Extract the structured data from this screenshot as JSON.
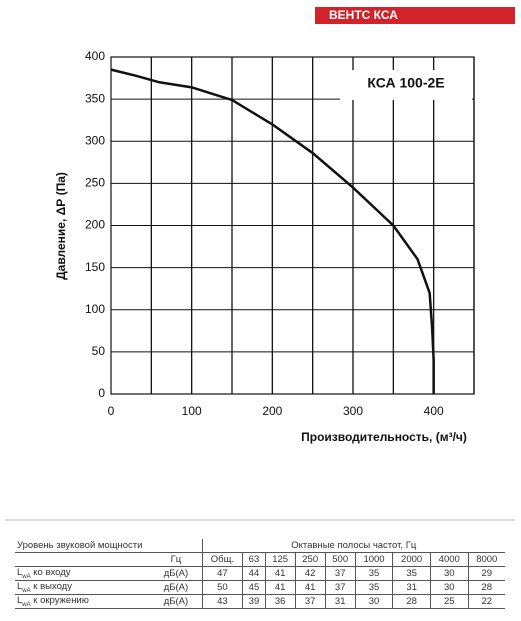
{
  "brand": "ВЕНТС КСА",
  "chart_data": {
    "type": "line",
    "annotation": "КСА 100-2E",
    "y_label": "Давление, ΔР (Па)",
    "x_label": "Производительность, (м³/ч)",
    "series": [
      {
        "name": "КСА 100-2E",
        "color": "#111111",
        "x": [
          0,
          30,
          60,
          100,
          130,
          150,
          200,
          250,
          300,
          350,
          380,
          395,
          398,
          400,
          400
        ],
        "values": [
          385,
          378,
          370,
          364,
          355,
          349,
          320,
          286,
          245,
          200,
          160,
          120,
          80,
          40,
          0
        ]
      }
    ],
    "xlim": [
      0,
      450
    ],
    "xticks": [
      0,
      100,
      200,
      300,
      400
    ],
    "xgrid": [
      50,
      100,
      150,
      200,
      250,
      300,
      350,
      400,
      450
    ],
    "ylim": [
      0,
      400
    ],
    "yticks": [
      0,
      50,
      100,
      150,
      200,
      250,
      300,
      350,
      400
    ],
    "grid": true
  },
  "table": {
    "title": "Уровень звуковой мощности",
    "group": "Октавные полосы частот, Гц",
    "unit_header": "Гц",
    "columns": [
      "Общ.",
      "63",
      "125",
      "250",
      "500",
      "1000",
      "2000",
      "4000",
      "8000"
    ],
    "rows": [
      {
        "symbol": "L",
        "sub": "wA",
        "text": "ко входу",
        "unit": "дБ(А)",
        "values": [
          47,
          44,
          41,
          42,
          37,
          35,
          35,
          30,
          29
        ]
      },
      {
        "symbol": "L",
        "sub": "wA",
        "text": "к выходу",
        "unit": "дБ(А)",
        "values": [
          50,
          45,
          41,
          41,
          37,
          35,
          31,
          30,
          28
        ]
      },
      {
        "symbol": "L",
        "sub": "wA",
        "text": "к окружению",
        "unit": "дБ(А)",
        "values": [
          43,
          39,
          36,
          37,
          31,
          30,
          28,
          25,
          22
        ]
      }
    ]
  }
}
